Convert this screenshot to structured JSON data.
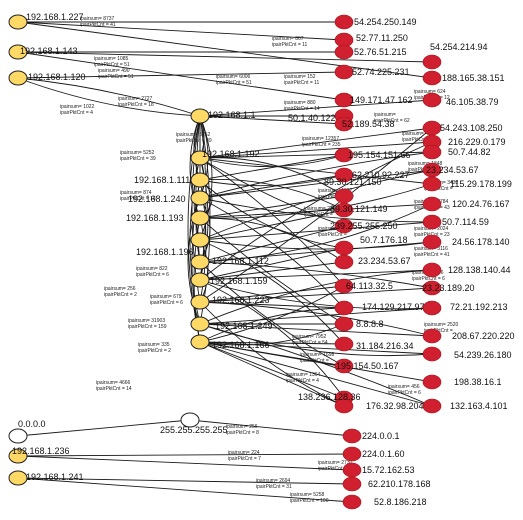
{
  "nodes": {
    "s227": {
      "label": "192.168.1.227",
      "kind": "src"
    },
    "s143": {
      "label": "192.168.1.143",
      "kind": "src"
    },
    "s120": {
      "label": "192.168.1.120",
      "kind": "src"
    },
    "s1": {
      "label": "192.168.1.1",
      "kind": "src"
    },
    "s192": {
      "label": "192.168.1.192",
      "kind": "src"
    },
    "s111": {
      "label": "192.168.1.111",
      "kind": "src"
    },
    "s240": {
      "label": "192.168.1.240",
      "kind": "src"
    },
    "s193": {
      "label": "192.168.1.193",
      "kind": "src"
    },
    "s196": {
      "label": "192.168.1.196",
      "kind": "src"
    },
    "s112": {
      "label": "192.168.1.112",
      "kind": "src"
    },
    "s159": {
      "label": "192.168.1.159",
      "kind": "src"
    },
    "s223": {
      "label": "192.168.1.223",
      "kind": "src"
    },
    "s249": {
      "label": "192.168.1.249",
      "kind": "src"
    },
    "s166": {
      "label": "192.168.1.166",
      "kind": "src"
    },
    "z0": {
      "label": "0.0.0.0",
      "kind": "plain"
    },
    "bc": {
      "label": "255.255.255.255",
      "kind": "plain"
    },
    "s236": {
      "label": "192.168.1.236",
      "kind": "src"
    },
    "s241": {
      "label": "192.168.1.241",
      "kind": "src"
    },
    "d1": {
      "label": "54.254.250.149",
      "kind": "dst"
    },
    "d2": {
      "label": "52.77.11.250",
      "kind": "dst"
    },
    "d3": {
      "label": "52.76.51.215",
      "kind": "dst"
    },
    "d4": {
      "label": "54.254.214.94",
      "kind": "dst"
    },
    "d5": {
      "label": "52.74.225.231",
      "kind": "dst"
    },
    "d6": {
      "label": "188.165.38.151",
      "kind": "dst"
    },
    "d7": {
      "label": "149.171.47.162",
      "kind": "dst"
    },
    "d8": {
      "label": "46.105.38.79",
      "kind": "dst"
    },
    "d9": {
      "label": "50.1.40.122",
      "kind": "dst"
    },
    "d10": {
      "label": "52.189.54.38",
      "kind": "dst"
    },
    "d11": {
      "label": "54.243.108.250",
      "kind": "dst"
    },
    "d12": {
      "label": "216.229.0.179",
      "kind": "dst"
    },
    "d13": {
      "label": "50.7.44.82",
      "kind": "dst"
    },
    "d14": {
      "label": "195.154.151.66",
      "kind": "dst"
    },
    "d15": {
      "label": "23.234.53.67",
      "kind": "dst"
    },
    "d16": {
      "label": "62.210.92.227",
      "kind": "dst"
    },
    "d17": {
      "label": "115.29.178.199",
      "kind": "dst"
    },
    "d18": {
      "label": "89.30.121.150",
      "kind": "dst"
    },
    "d19": {
      "label": "120.24.76.167",
      "kind": "dst"
    },
    "d20": {
      "label": "89.30.121.149",
      "kind": "dst"
    },
    "d21": {
      "label": "50.7.114.59",
      "kind": "dst"
    },
    "d22": {
      "label": "239.255.255.250",
      "kind": "dst"
    },
    "d23": {
      "label": "24.56.178.140",
      "kind": "dst"
    },
    "d24": {
      "label": "50.7.176.18",
      "kind": "dst"
    },
    "d25": {
      "label": "23.234.53.67",
      "kind": "dst"
    },
    "d26": {
      "label": "128.138.140.44",
      "kind": "dst"
    },
    "d27": {
      "label": "64.113.32.5",
      "kind": "dst"
    },
    "d28": {
      "label": "23.23.189.20",
      "kind": "dst"
    },
    "d29": {
      "label": "174.129.217.97",
      "kind": "dst"
    },
    "d30": {
      "label": "72.21.192.213",
      "kind": "dst"
    },
    "d31": {
      "label": "8.8.8.8",
      "kind": "dst"
    },
    "d32": {
      "label": "208.67.220.220",
      "kind": "dst"
    },
    "d33": {
      "label": "31.184.216.34",
      "kind": "dst"
    },
    "d34": {
      "label": "54.239.26.180",
      "kind": "dst"
    },
    "d35": {
      "label": "195.154.50.167",
      "kind": "dst"
    },
    "d36": {
      "label": "198.38.16.1",
      "kind": "dst"
    },
    "d37": {
      "label": "138.236.128.36",
      "kind": "dst"
    },
    "d38": {
      "label": "176.32.98.204",
      "kind": "dst"
    },
    "d39": {
      "label": "132.163.4.101",
      "kind": "dst"
    },
    "d40": {
      "label": "224.0.0.1",
      "kind": "dst"
    },
    "d41": {
      "label": "224.0.1.60",
      "kind": "dst"
    },
    "d42": {
      "label": "15.72.162.53",
      "kind": "dst"
    },
    "d43": {
      "label": "62.210.178.168",
      "kind": "dst"
    },
    "d44": {
      "label": "52.8.186.218",
      "kind": "dst"
    }
  },
  "edges": [
    {
      "from": "s227",
      "to": "d1",
      "ipairsum": "8737",
      "ipairPktCnt": "41"
    },
    {
      "from": "s227",
      "to": "d2",
      "ipairsum": "867",
      "ipairPktCnt": "11"
    },
    {
      "from": "s143",
      "to": "d3",
      "ipairsum": "1085",
      "ipairPktCnt": "51"
    },
    {
      "from": "s143",
      "to": "d4",
      "ipairsum": "490",
      "ipairPktCnt": "51"
    },
    {
      "from": "s120",
      "to": "d5",
      "ipairsum": "6006",
      "ipairPktCnt": "51"
    },
    {
      "from": "s227",
      "to": "d6",
      "ipairsum": "152",
      "ipairPktCnt": "11"
    },
    {
      "from": "s143",
      "to": "d7",
      "ipairsum": "880",
      "ipairPktCnt": "14"
    },
    {
      "from": "s120",
      "to": "s1",
      "ipairsum": "1022",
      "ipairPktCnt": "4"
    },
    {
      "from": "s120",
      "to": "s1",
      "ipairsum": "2727",
      "ipairPktCnt": "18"
    },
    {
      "from": "s1",
      "to": "d8",
      "ipairsum": "624",
      "ipairPktCnt": "12"
    },
    {
      "from": "s1",
      "to": "d9",
      "ipairsum": "",
      "ipairPktCnt": "62"
    },
    {
      "from": "s192",
      "to": "s1",
      "ipairsum": "5252",
      "ipairPktCnt": "39"
    },
    {
      "from": "s111",
      "to": "s1",
      "ipairsum": "5252",
      "ipairPktCnt": "39"
    },
    {
      "from": "s1",
      "to": "d10",
      "ipairsum": "12357",
      "ipairPktCnt": "235"
    },
    {
      "from": "s192",
      "to": "d11",
      "ipairsum": "456",
      "ipairPktCnt": "6"
    },
    {
      "from": "s192",
      "to": "d12",
      "ipairsum": "1848",
      "ipairPktCnt": "27"
    },
    {
      "from": "s192",
      "to": "d13",
      "ipairsum": "",
      "ipairPktCnt": ""
    },
    {
      "from": "s111",
      "to": "d14",
      "ipairsum": "874",
      "ipairPktCnt": "18"
    },
    {
      "from": "s240",
      "to": "d15",
      "ipairsum": "",
      "ipairPktCnt": ""
    },
    {
      "from": "s240",
      "to": "d16",
      "ipairsum": "1327",
      "ipairPktCnt": "20"
    },
    {
      "from": "s192",
      "to": "d17",
      "ipairsum": "3432",
      "ipairPktCnt": ""
    },
    {
      "from": "s193",
      "to": "d18",
      "ipairsum": "2756",
      "ipairPktCnt": ""
    },
    {
      "from": "s193",
      "to": "d19",
      "ipairsum": "3784",
      "ipairPktCnt": "43"
    },
    {
      "from": "s196",
      "to": "d20",
      "ipairsum": "4628",
      "ipairPktCnt": ""
    },
    {
      "from": "s196",
      "to": "d21",
      "ipairsum": "2024",
      "ipairPktCnt": "23"
    },
    {
      "from": "s112",
      "to": "d22",
      "ipairsum": "3116",
      "ipairPktCnt": "41"
    },
    {
      "from": "s112",
      "to": "d23",
      "ipairsum": "",
      "ipairPktCnt": ""
    },
    {
      "from": "s159",
      "to": "d24",
      "ipairsum": "822",
      "ipairPktCnt": "6"
    },
    {
      "from": "s159",
      "to": "d25",
      "ipairsum": "456",
      "ipairPktCnt": "6"
    },
    {
      "from": "s159",
      "to": "d26",
      "ipairsum": "",
      "ipairPktCnt": ""
    },
    {
      "from": "s223",
      "to": "d27",
      "ipairsum": "256",
      "ipairPktCnt": "2"
    },
    {
      "from": "s223",
      "to": "d28",
      "ipairsum": "679",
      "ipairPktCnt": "6"
    },
    {
      "from": "s223",
      "to": "d29",
      "ipairsum": "",
      "ipairPktCnt": ""
    },
    {
      "from": "s249",
      "to": "d30",
      "ipairsum": "31903",
      "ipairPktCnt": "159"
    },
    {
      "from": "s249",
      "to": "d31",
      "ipairsum": "2520",
      "ipairPktCnt": ""
    },
    {
      "from": "s249",
      "to": "d32",
      "ipairsum": "",
      "ipairPktCnt": ""
    },
    {
      "from": "s166",
      "to": "d33",
      "ipairsum": "335",
      "ipairPktCnt": "2"
    },
    {
      "from": "s166",
      "to": "d34",
      "ipairsum": "7952",
      "ipairPktCnt": "54"
    },
    {
      "from": "s166",
      "to": "d35",
      "ipairsum": "1698",
      "ipairPktCnt": ""
    },
    {
      "from": "s166",
      "to": "d36",
      "ipairsum": "",
      "ipairPktCnt": ""
    },
    {
      "from": "s166",
      "to": "d37",
      "ipairsum": "1364",
      "ipairPktCnt": "4"
    },
    {
      "from": "s166",
      "to": "d38",
      "ipairsum": "456",
      "ipairPktCnt": "6"
    },
    {
      "from": "s166",
      "to": "d39",
      "ipairsum": "",
      "ipairPktCnt": ""
    },
    {
      "from": "z0",
      "to": "bc",
      "ipairsum": "4666",
      "ipairPktCnt": "14"
    },
    {
      "from": "bc",
      "to": "d40",
      "ipairsum": "256",
      "ipairPktCnt": "8"
    },
    {
      "from": "s236",
      "to": "d41",
      "ipairsum": "224",
      "ipairPktCnt": "7"
    },
    {
      "from": "s236",
      "to": "d42",
      "ipairsum": "2730",
      "ipairPktCnt": "30"
    },
    {
      "from": "s241",
      "to": "d43",
      "ipairsum": "2694",
      "ipairPktCnt": "31"
    },
    {
      "from": "s241",
      "to": "d44",
      "ipairsum": "5258",
      "ipairPktCnt": "100"
    }
  ],
  "mesh_edges": [
    [
      "s1",
      "s192"
    ],
    [
      "s1",
      "s111"
    ],
    [
      "s1",
      "s240"
    ],
    [
      "s1",
      "s193"
    ],
    [
      "s1",
      "s196"
    ],
    [
      "s1",
      "s112"
    ],
    [
      "s1",
      "s159"
    ],
    [
      "s1",
      "s223"
    ],
    [
      "s1",
      "s249"
    ],
    [
      "s1",
      "s166"
    ],
    [
      "s192",
      "s240"
    ],
    [
      "s192",
      "s196"
    ],
    [
      "s192",
      "s159"
    ],
    [
      "s192",
      "s249"
    ],
    [
      "s111",
      "s193"
    ],
    [
      "s111",
      "s112"
    ],
    [
      "s111",
      "s223"
    ],
    [
      "s111",
      "s166"
    ],
    [
      "s240",
      "s112"
    ],
    [
      "s240",
      "s249"
    ],
    [
      "s193",
      "s159"
    ],
    [
      "s193",
      "s166"
    ],
    [
      "s196",
      "s223"
    ],
    [
      "s192",
      "d14"
    ],
    [
      "s192",
      "d18"
    ],
    [
      "s192",
      "d22"
    ],
    [
      "s192",
      "d27"
    ],
    [
      "s111",
      "d16"
    ],
    [
      "s111",
      "d20"
    ],
    [
      "s111",
      "d24"
    ],
    [
      "s240",
      "d13"
    ],
    [
      "s240",
      "d21"
    ],
    [
      "s240",
      "d29"
    ],
    [
      "s193",
      "d17"
    ],
    [
      "s193",
      "d25"
    ],
    [
      "s193",
      "d31"
    ],
    [
      "s196",
      "d15"
    ],
    [
      "s196",
      "d23"
    ],
    [
      "s196",
      "d33"
    ],
    [
      "s112",
      "d19"
    ],
    [
      "s112",
      "d28"
    ],
    [
      "s112",
      "d35"
    ],
    [
      "s159",
      "d12"
    ],
    [
      "s159",
      "d30"
    ],
    [
      "s159",
      "d37"
    ],
    [
      "s223",
      "d11"
    ],
    [
      "s223",
      "d32"
    ],
    [
      "s223",
      "d38"
    ],
    [
      "s249",
      "d26"
    ],
    [
      "s249",
      "d34"
    ],
    [
      "s249",
      "d39"
    ],
    [
      "s166",
      "d27"
    ],
    [
      "s166",
      "d29"
    ],
    [
      "s166",
      "d31"
    ]
  ]
}
